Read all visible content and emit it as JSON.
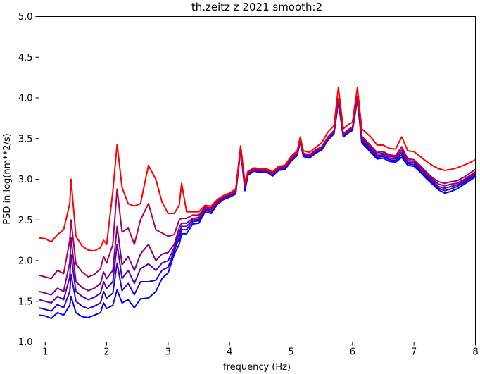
{
  "chart_data": {
    "type": "line",
    "title": "th.zeitz z 2021 smooth:2",
    "xlabel": "frequency (Hz)",
    "ylabel": "PSD in log(nm**2/s)",
    "xlim": [
      0.9,
      8.0
    ],
    "ylim": [
      1.0,
      5.0
    ],
    "xticks": [
      1,
      2,
      3,
      4,
      5,
      6,
      7,
      8
    ],
    "xtick_labels": [
      "1",
      "2",
      "3",
      "4",
      "5",
      "6",
      "7",
      "8"
    ],
    "yticks": [
      1.0,
      1.5,
      2.0,
      2.5,
      3.0,
      3.5,
      4.0,
      4.5,
      5.0
    ],
    "ytick_labels": [
      "1.0",
      "1.5",
      "2.0",
      "2.5",
      "3.0",
      "3.5",
      "4.0",
      "4.5",
      "5.0"
    ],
    "grid": false,
    "legend": "none",
    "colors": [
      "#0000ff",
      "#2a00d5",
      "#5500aa",
      "#800080",
      "#aa0055",
      "#ff0000"
    ],
    "series": [
      {
        "x": [
          0.9,
          1.0,
          1.1,
          1.2,
          1.3,
          1.4,
          1.42,
          1.5,
          1.6,
          1.7,
          1.8,
          1.9,
          1.95,
          2.0,
          2.1,
          2.17,
          2.25,
          2.35,
          2.45,
          2.55,
          2.68,
          2.8,
          2.9,
          3.0,
          3.1,
          3.18,
          3.22,
          3.3,
          3.4,
          3.5,
          3.6,
          3.7,
          3.8,
          3.9,
          4.0,
          4.1,
          4.18,
          4.25,
          4.3,
          4.4,
          4.5,
          4.6,
          4.7,
          4.8,
          4.9,
          5.0,
          5.1,
          5.15,
          5.2,
          5.3,
          5.4,
          5.5,
          5.6,
          5.7,
          5.77,
          5.85,
          5.95,
          6.0,
          6.08,
          6.15,
          6.3,
          6.4,
          6.5,
          6.6,
          6.7,
          6.8,
          6.9,
          7.0,
          7.1,
          7.2,
          7.3,
          7.4,
          7.5,
          7.6,
          7.7,
          7.8,
          7.9,
          8.0
        ],
        "values": [
          1.33,
          1.32,
          1.29,
          1.36,
          1.33,
          1.45,
          1.56,
          1.36,
          1.31,
          1.3,
          1.33,
          1.36,
          1.48,
          1.41,
          1.45,
          1.64,
          1.48,
          1.52,
          1.42,
          1.53,
          1.54,
          1.62,
          1.78,
          1.85,
          2.08,
          2.2,
          2.33,
          2.33,
          2.45,
          2.46,
          2.6,
          2.58,
          2.69,
          2.75,
          2.78,
          2.82,
          3.36,
          2.86,
          3.05,
          3.1,
          3.08,
          3.09,
          3.04,
          3.11,
          3.12,
          3.22,
          3.29,
          3.46,
          3.28,
          3.26,
          3.32,
          3.36,
          3.48,
          3.56,
          3.95,
          3.52,
          3.58,
          3.6,
          3.98,
          3.45,
          3.33,
          3.25,
          3.26,
          3.22,
          3.21,
          3.27,
          3.17,
          3.16,
          3.09,
          3.01,
          2.94,
          2.87,
          2.83,
          2.85,
          2.88,
          2.93,
          2.98,
          3.03
        ]
      },
      {
        "x": [
          0.9,
          1.0,
          1.1,
          1.2,
          1.3,
          1.4,
          1.42,
          1.5,
          1.6,
          1.7,
          1.8,
          1.9,
          1.95,
          2.0,
          2.1,
          2.17,
          2.25,
          2.35,
          2.45,
          2.55,
          2.68,
          2.8,
          2.9,
          3.0,
          3.1,
          3.18,
          3.22,
          3.3,
          3.4,
          3.5,
          3.6,
          3.7,
          3.8,
          3.9,
          4.0,
          4.1,
          4.18,
          4.25,
          4.3,
          4.4,
          4.5,
          4.6,
          4.7,
          4.8,
          4.9,
          5.0,
          5.1,
          5.15,
          5.2,
          5.3,
          5.4,
          5.5,
          5.6,
          5.7,
          5.77,
          5.85,
          5.95,
          6.0,
          6.08,
          6.15,
          6.3,
          6.4,
          6.5,
          6.6,
          6.7,
          6.8,
          6.9,
          7.0,
          7.1,
          7.2,
          7.3,
          7.4,
          7.5,
          7.6,
          7.7,
          7.8,
          7.9,
          8.0
        ],
        "values": [
          1.42,
          1.4,
          1.38,
          1.46,
          1.42,
          1.62,
          1.83,
          1.5,
          1.44,
          1.41,
          1.44,
          1.48,
          1.62,
          1.54,
          1.6,
          1.97,
          1.63,
          1.72,
          1.58,
          1.74,
          1.74,
          1.76,
          1.88,
          1.92,
          2.12,
          2.28,
          2.38,
          2.38,
          2.48,
          2.49,
          2.62,
          2.6,
          2.7,
          2.76,
          2.79,
          2.83,
          3.37,
          2.88,
          3.06,
          3.1,
          3.09,
          3.09,
          3.05,
          3.12,
          3.13,
          3.23,
          3.3,
          3.47,
          3.29,
          3.27,
          3.33,
          3.37,
          3.49,
          3.57,
          3.96,
          3.53,
          3.59,
          3.61,
          3.99,
          3.47,
          3.35,
          3.27,
          3.28,
          3.24,
          3.23,
          3.3,
          3.19,
          3.18,
          3.11,
          3.03,
          2.96,
          2.89,
          2.86,
          2.88,
          2.91,
          2.95,
          3.0,
          3.05
        ]
      },
      {
        "x": [
          0.9,
          1.0,
          1.1,
          1.2,
          1.3,
          1.4,
          1.42,
          1.5,
          1.6,
          1.7,
          1.8,
          1.9,
          1.95,
          2.0,
          2.1,
          2.17,
          2.25,
          2.35,
          2.45,
          2.55,
          2.68,
          2.8,
          2.9,
          3.0,
          3.1,
          3.18,
          3.22,
          3.3,
          3.4,
          3.5,
          3.6,
          3.7,
          3.8,
          3.9,
          4.0,
          4.1,
          4.18,
          4.25,
          4.3,
          4.4,
          4.5,
          4.6,
          4.7,
          4.8,
          4.9,
          5.0,
          5.1,
          5.15,
          5.2,
          5.3,
          5.4,
          5.5,
          5.6,
          5.7,
          5.77,
          5.85,
          5.95,
          6.0,
          6.08,
          6.15,
          6.3,
          6.4,
          6.5,
          6.6,
          6.7,
          6.8,
          6.9,
          7.0,
          7.1,
          7.2,
          7.3,
          7.4,
          7.5,
          7.6,
          7.7,
          7.8,
          7.9,
          8.0
        ],
        "values": [
          1.52,
          1.5,
          1.48,
          1.56,
          1.52,
          1.8,
          2.07,
          1.62,
          1.56,
          1.52,
          1.55,
          1.6,
          1.74,
          1.66,
          1.74,
          2.2,
          1.78,
          1.88,
          1.72,
          1.9,
          1.96,
          1.88,
          1.97,
          2.0,
          2.16,
          2.34,
          2.42,
          2.42,
          2.5,
          2.51,
          2.63,
          2.61,
          2.71,
          2.77,
          2.8,
          2.84,
          3.38,
          2.9,
          3.07,
          3.11,
          3.1,
          3.1,
          3.06,
          3.13,
          3.14,
          3.24,
          3.31,
          3.48,
          3.3,
          3.28,
          3.34,
          3.38,
          3.5,
          3.58,
          3.97,
          3.54,
          3.6,
          3.62,
          4.0,
          3.49,
          3.37,
          3.29,
          3.3,
          3.26,
          3.25,
          3.33,
          3.21,
          3.2,
          3.13,
          3.05,
          2.98,
          2.91,
          2.89,
          2.91,
          2.93,
          2.97,
          3.02,
          3.07
        ]
      },
      {
        "x": [
          0.9,
          1.0,
          1.1,
          1.2,
          1.3,
          1.4,
          1.42,
          1.5,
          1.6,
          1.7,
          1.8,
          1.9,
          1.95,
          2.0,
          2.1,
          2.17,
          2.25,
          2.35,
          2.45,
          2.55,
          2.68,
          2.8,
          2.9,
          3.0,
          3.1,
          3.18,
          3.22,
          3.3,
          3.4,
          3.5,
          3.6,
          3.7,
          3.8,
          3.9,
          4.0,
          4.1,
          4.18,
          4.25,
          4.3,
          4.4,
          4.5,
          4.6,
          4.7,
          4.8,
          4.9,
          5.0,
          5.1,
          5.15,
          5.2,
          5.3,
          5.4,
          5.5,
          5.6,
          5.7,
          5.77,
          5.85,
          5.95,
          6.0,
          6.08,
          6.15,
          6.3,
          6.4,
          6.5,
          6.6,
          6.7,
          6.8,
          6.9,
          7.0,
          7.1,
          7.2,
          7.3,
          7.4,
          7.5,
          7.6,
          7.7,
          7.8,
          7.9,
          8.0
        ],
        "values": [
          1.62,
          1.6,
          1.58,
          1.66,
          1.62,
          1.98,
          2.28,
          1.74,
          1.67,
          1.63,
          1.66,
          1.72,
          1.86,
          1.78,
          1.88,
          2.42,
          1.95,
          2.05,
          1.88,
          2.08,
          2.2,
          2.0,
          2.08,
          2.1,
          2.2,
          2.4,
          2.46,
          2.46,
          2.52,
          2.53,
          2.64,
          2.63,
          2.72,
          2.78,
          2.81,
          2.85,
          3.39,
          2.92,
          3.08,
          3.12,
          3.11,
          3.11,
          3.07,
          3.14,
          3.15,
          3.25,
          3.32,
          3.49,
          3.31,
          3.29,
          3.35,
          3.39,
          3.51,
          3.59,
          3.98,
          3.55,
          3.61,
          3.63,
          4.01,
          3.51,
          3.39,
          3.31,
          3.32,
          3.28,
          3.27,
          3.36,
          3.23,
          3.22,
          3.15,
          3.07,
          3.0,
          2.94,
          2.92,
          2.94,
          2.95,
          2.99,
          3.04,
          3.09
        ]
      },
      {
        "x": [
          0.9,
          1.0,
          1.1,
          1.2,
          1.3,
          1.4,
          1.42,
          1.5,
          1.6,
          1.7,
          1.8,
          1.9,
          1.95,
          2.0,
          2.1,
          2.17,
          2.25,
          2.35,
          2.45,
          2.55,
          2.68,
          2.8,
          2.9,
          3.0,
          3.1,
          3.18,
          3.22,
          3.3,
          3.4,
          3.5,
          3.6,
          3.7,
          3.8,
          3.9,
          4.0,
          4.1,
          4.18,
          4.25,
          4.3,
          4.4,
          4.5,
          4.6,
          4.7,
          4.8,
          4.9,
          5.0,
          5.1,
          5.15,
          5.2,
          5.3,
          5.4,
          5.5,
          5.6,
          5.7,
          5.77,
          5.85,
          5.95,
          6.0,
          6.08,
          6.15,
          6.3,
          6.4,
          6.5,
          6.6,
          6.7,
          6.8,
          6.9,
          7.0,
          7.1,
          7.2,
          7.3,
          7.4,
          7.5,
          7.6,
          7.7,
          7.8,
          7.9,
          8.0
        ],
        "values": [
          1.82,
          1.8,
          1.78,
          1.88,
          1.84,
          2.25,
          2.5,
          1.96,
          1.86,
          1.8,
          1.83,
          1.9,
          2.05,
          1.97,
          2.2,
          2.88,
          2.35,
          2.4,
          2.2,
          2.5,
          2.7,
          2.38,
          2.34,
          2.3,
          2.32,
          2.5,
          2.52,
          2.52,
          2.56,
          2.56,
          2.66,
          2.65,
          2.73,
          2.79,
          2.82,
          2.86,
          3.4,
          2.94,
          3.09,
          3.13,
          3.12,
          3.12,
          3.08,
          3.15,
          3.16,
          3.26,
          3.33,
          3.5,
          3.32,
          3.3,
          3.36,
          3.4,
          3.52,
          3.6,
          3.99,
          3.56,
          3.62,
          3.64,
          4.02,
          3.53,
          3.41,
          3.33,
          3.34,
          3.3,
          3.29,
          3.4,
          3.25,
          3.24,
          3.17,
          3.09,
          3.02,
          2.97,
          2.95,
          2.97,
          2.98,
          3.02,
          3.07,
          3.12
        ]
      },
      {
        "x": [
          0.9,
          1.0,
          1.1,
          1.2,
          1.3,
          1.4,
          1.42,
          1.5,
          1.6,
          1.7,
          1.8,
          1.9,
          1.95,
          2.0,
          2.1,
          2.17,
          2.25,
          2.35,
          2.45,
          2.55,
          2.68,
          2.8,
          2.9,
          3.0,
          3.1,
          3.18,
          3.22,
          3.3,
          3.4,
          3.5,
          3.6,
          3.7,
          3.8,
          3.9,
          4.0,
          4.1,
          4.18,
          4.25,
          4.3,
          4.4,
          4.5,
          4.6,
          4.7,
          4.8,
          4.9,
          5.0,
          5.1,
          5.15,
          5.2,
          5.3,
          5.4,
          5.5,
          5.6,
          5.7,
          5.77,
          5.85,
          5.95,
          6.0,
          6.08,
          6.15,
          6.3,
          6.4,
          6.5,
          6.6,
          6.7,
          6.8,
          6.9,
          7.0,
          7.1,
          7.2,
          7.3,
          7.4,
          7.5,
          7.6,
          7.7,
          7.8,
          7.9,
          8.0
        ],
        "values": [
          2.28,
          2.27,
          2.23,
          2.32,
          2.38,
          2.7,
          3.0,
          2.3,
          2.18,
          2.13,
          2.12,
          2.16,
          2.25,
          2.2,
          2.85,
          3.43,
          2.9,
          2.7,
          2.67,
          2.7,
          3.17,
          3.0,
          2.72,
          2.58,
          2.58,
          2.68,
          2.95,
          2.6,
          2.6,
          2.6,
          2.68,
          2.67,
          2.75,
          2.8,
          2.83,
          2.88,
          3.41,
          2.96,
          3.1,
          3.14,
          3.13,
          3.13,
          3.09,
          3.16,
          3.17,
          3.28,
          3.35,
          3.52,
          3.35,
          3.33,
          3.39,
          3.45,
          3.58,
          3.66,
          4.13,
          3.62,
          3.68,
          3.7,
          4.13,
          3.62,
          3.52,
          3.42,
          3.42,
          3.38,
          3.37,
          3.52,
          3.35,
          3.34,
          3.28,
          3.22,
          3.17,
          3.13,
          3.11,
          3.12,
          3.14,
          3.17,
          3.2,
          3.24
        ]
      }
    ]
  }
}
